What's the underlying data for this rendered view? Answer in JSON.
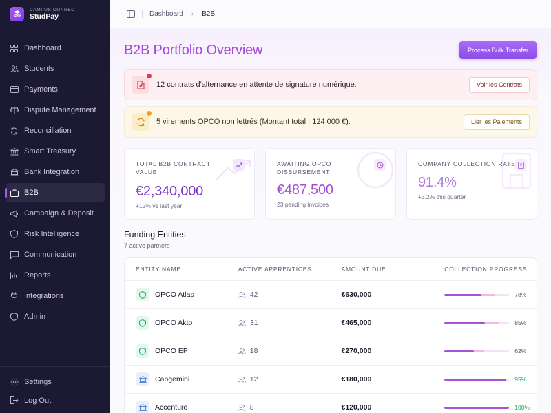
{
  "brand": {
    "kicker": "CAMPUS CONNECT",
    "name": "StudPay"
  },
  "sidebar": {
    "items": [
      {
        "label": "Dashboard",
        "icon": "grid-icon"
      },
      {
        "label": "Students",
        "icon": "users-icon"
      },
      {
        "label": "Payments",
        "icon": "credit-card-icon"
      },
      {
        "label": "Dispute Management",
        "icon": "scale-icon"
      },
      {
        "label": "Reconciliation",
        "icon": "refresh-icon"
      },
      {
        "label": "Smart Treasury",
        "icon": "bank-icon"
      },
      {
        "label": "Bank Integration",
        "icon": "building-icon"
      },
      {
        "label": "B2B",
        "icon": "briefcase-icon",
        "active": true
      },
      {
        "label": "Campaign & Deposit",
        "icon": "megaphone-icon"
      },
      {
        "label": "Risk Intelligence",
        "icon": "shield-icon"
      },
      {
        "label": "Communication",
        "icon": "message-icon"
      },
      {
        "label": "Reports",
        "icon": "bar-chart-icon"
      },
      {
        "label": "Integrations",
        "icon": "plug-icon"
      },
      {
        "label": "Admin",
        "icon": "shield-admin-icon"
      }
    ],
    "bottom": [
      {
        "label": "Settings",
        "icon": "gear-icon"
      },
      {
        "label": "Log Out",
        "icon": "logout-icon"
      }
    ]
  },
  "breadcrumb": {
    "root": "Dashboard",
    "current": "B2B"
  },
  "page": {
    "title": "B2B Portfolio Overview",
    "primary_action": "Process Bulk Transfer"
  },
  "alerts": [
    {
      "text": "12 contrats d'alternance en attente de signature numérique.",
      "action": "Voir les Contrats"
    },
    {
      "text": "5 virements OPCO non lettrés (Montant total : 124 000 €).",
      "action": "Lier les Paiements"
    }
  ],
  "stats": [
    {
      "label": "Total B2B Contract Value",
      "value": "€2,340,000",
      "sub": "+12% vs last year",
      "color": "#7c35c9"
    },
    {
      "label": "Awaiting OPCO Disbursement",
      "value": "€487,500",
      "sub": "23 pending invoices",
      "color": "#a24fd6"
    },
    {
      "label": "Company Collection Rate",
      "value": "91.4%",
      "sub": "+3.2% this quarter",
      "color": "#b07ae0"
    }
  ],
  "entities": {
    "title": "Funding Entities",
    "subtitle": "7 active partners",
    "columns": [
      "Entity Name",
      "Active Apprentices",
      "Amount Due",
      "Collection Progress"
    ],
    "rows": [
      {
        "name": "OPCO Atlas",
        "type": "opco",
        "apprentices": "42",
        "amount": "€630,000",
        "progress": 0.78,
        "progress_label": "78%"
      },
      {
        "name": "OPCO Akto",
        "type": "opco",
        "apprentices": "31",
        "amount": "€465,000",
        "progress": 0.85,
        "progress_label": "85%"
      },
      {
        "name": "OPCO EP",
        "type": "opco",
        "apprentices": "18",
        "amount": "€270,000",
        "progress": 0.62,
        "progress_label": "62%"
      },
      {
        "name": "Capgemini",
        "type": "corp",
        "apprentices": "12",
        "amount": "€180,000",
        "progress": 0.95,
        "progress_label": "95%"
      },
      {
        "name": "Accenture",
        "type": "corp",
        "apprentices": "8",
        "amount": "€120,000",
        "progress": 1.0,
        "progress_label": "100%"
      }
    ]
  }
}
